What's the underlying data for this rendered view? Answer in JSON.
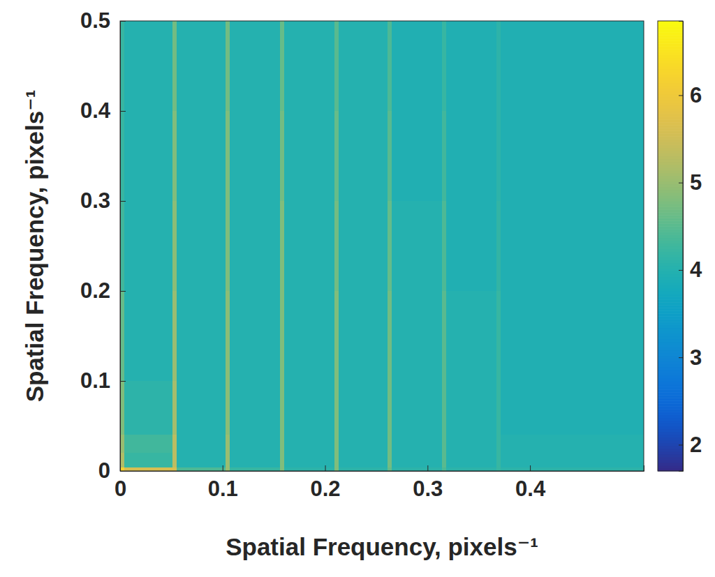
{
  "chart_data": {
    "type": "heatmap",
    "xlabel": "Spatial Frequency, pixels⁻¹",
    "ylabel": "Spatial Frequency, pixels⁻¹",
    "x_edges": [
      0,
      0.004,
      0.051,
      0.055,
      0.103,
      0.107,
      0.156,
      0.16,
      0.209,
      0.213,
      0.261,
      0.265,
      0.314,
      0.318,
      0.367,
      0.371,
      0.511
    ],
    "y_edges": [
      0,
      0.004,
      0.02,
      0.04,
      0.1,
      0.2,
      0.3,
      0.4,
      0.5
    ],
    "z": [
      [
        6.2,
        5.6,
        5.6,
        4.4,
        5.0,
        4.2,
        4.8,
        4.1,
        4.8,
        4.1,
        4.6,
        4.1,
        4.4,
        4.1,
        4.2,
        4.1
      ],
      [
        5.2,
        4.2,
        5.3,
        4.0,
        5.0,
        4.0,
        4.8,
        4.0,
        4.8,
        4.0,
        4.7,
        4.0,
        4.5,
        4.0,
        4.2,
        4.0
      ],
      [
        5.0,
        4.3,
        5.3,
        4.0,
        5.0,
        4.0,
        4.8,
        4.0,
        4.8,
        4.0,
        4.7,
        4.0,
        4.5,
        4.0,
        4.2,
        4.0
      ],
      [
        4.8,
        4.1,
        5.1,
        4.0,
        4.9,
        4.0,
        4.8,
        4.0,
        4.8,
        4.0,
        4.7,
        4.0,
        4.5,
        4.0,
        4.2,
        3.95
      ],
      [
        4.6,
        4.0,
        5.0,
        4.0,
        4.9,
        4.0,
        4.8,
        4.0,
        4.8,
        4.0,
        4.7,
        4.0,
        4.5,
        4.0,
        4.2,
        3.95
      ],
      [
        4.3,
        4.0,
        4.9,
        4.0,
        4.8,
        4.0,
        4.8,
        4.0,
        4.7,
        4.0,
        4.6,
        4.0,
        4.4,
        3.95,
        4.15,
        3.95
      ],
      [
        4.2,
        4.0,
        4.8,
        4.0,
        4.8,
        4.0,
        4.7,
        4.0,
        4.6,
        4.0,
        4.5,
        3.95,
        4.3,
        3.95,
        4.1,
        3.95
      ],
      [
        4.2,
        4.0,
        4.7,
        4.0,
        4.7,
        4.0,
        4.6,
        4.0,
        4.5,
        4.0,
        4.4,
        3.95,
        4.2,
        3.95,
        4.1,
        3.95
      ]
    ],
    "xlim": [
      0,
      0.511
    ],
    "ylim": [
      0,
      0.5
    ],
    "xticks": [
      0,
      0.1,
      0.2,
      0.3,
      0.4
    ],
    "yticks": [
      0,
      0.1,
      0.2,
      0.3,
      0.4,
      0.5
    ],
    "colorbar": {
      "range": [
        1.7,
        6.85
      ],
      "ticks": [
        2,
        3,
        4,
        5,
        6
      ]
    }
  }
}
